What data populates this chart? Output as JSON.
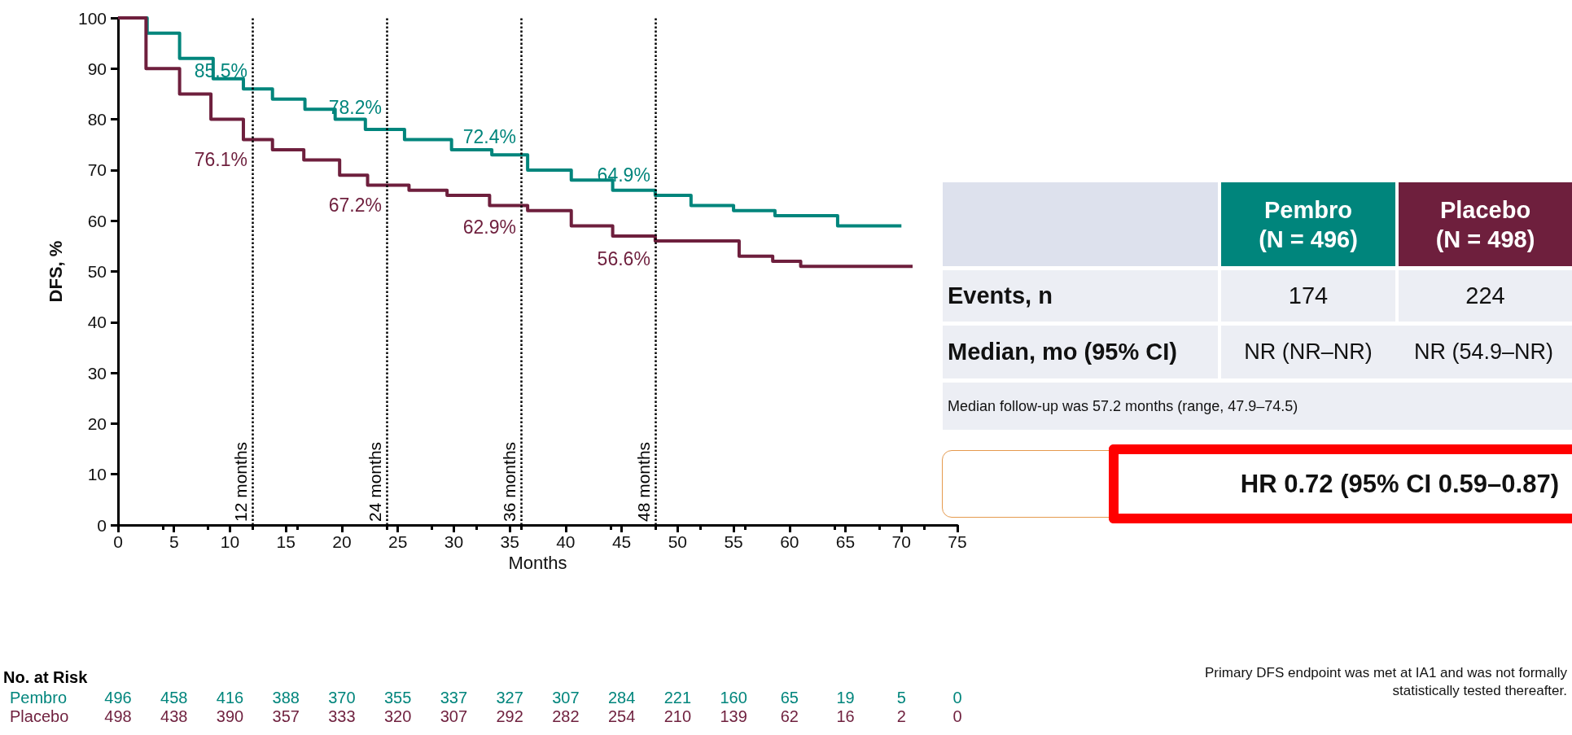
{
  "chart_data": {
    "type": "step",
    "xlabel": "Months",
    "ylabel": "DFS, %",
    "series": [
      {
        "name": "Pembro",
        "color": "#00857c",
        "x": [
          0,
          2.6,
          5.5,
          8.5,
          11.2,
          13.8,
          16.7,
          19.4,
          22.1,
          25.6,
          29.8,
          33.4,
          36.6,
          40.5,
          44.2,
          48.0,
          51.2,
          55.0,
          58.7,
          64.3,
          70.0
        ],
        "values": [
          100,
          97,
          92,
          88,
          86,
          84,
          82,
          80,
          78,
          76,
          74,
          73,
          70,
          68,
          66,
          65,
          63,
          62,
          61,
          59,
          59
        ]
      },
      {
        "name": "Placebo",
        "color": "#6e1f3d",
        "x": [
          0,
          2.5,
          5.5,
          8.3,
          11.2,
          13.8,
          16.6,
          19.8,
          22.3,
          26.0,
          29.4,
          33.2,
          36.6,
          40.5,
          44.2,
          48.0,
          55.5,
          58.5,
          61.0,
          71.0
        ],
        "values": [
          100,
          90,
          85,
          80,
          76,
          74,
          72,
          69,
          67,
          66,
          65,
          63,
          62,
          59,
          57,
          56,
          53,
          52,
          51,
          51
        ]
      }
    ],
    "xlim": [
      0,
      75
    ],
    "xticks": [
      0,
      5,
      10,
      15,
      20,
      25,
      30,
      35,
      40,
      45,
      50,
      55,
      60,
      65,
      70,
      75
    ],
    "ylim": [
      0,
      100
    ],
    "yticks": [
      0,
      10,
      20,
      30,
      40,
      50,
      60,
      70,
      80,
      90,
      100
    ],
    "grid": false,
    "legend": false,
    "marker": "none",
    "line_style": "solid",
    "ref_lines": [
      {
        "axis": "x",
        "value": 12,
        "label": "12 months",
        "color": "#000000",
        "line_style": "dotted"
      },
      {
        "axis": "x",
        "value": 24,
        "label": "24 months",
        "color": "#000000",
        "line_style": "dotted"
      },
      {
        "axis": "x",
        "value": 36,
        "label": "36 months",
        "color": "#000000",
        "line_style": "dotted"
      },
      {
        "axis": "x",
        "value": 48,
        "label": "48 months",
        "color": "#000000",
        "line_style": "dotted"
      }
    ],
    "annotations": [
      {
        "text": "85.5%",
        "x": 12,
        "y": 85.5
      },
      {
        "text": "78.2%",
        "x": 24,
        "y": 78.2
      },
      {
        "text": "72.4%",
        "x": 36,
        "y": 72.4
      },
      {
        "text": "64.9%",
        "x": 48,
        "y": 64.9
      },
      {
        "text": "76.1%",
        "x": 12,
        "y": 76.1
      },
      {
        "text": "67.2%",
        "x": 24,
        "y": 67.2
      },
      {
        "text": "62.9%",
        "x": 36,
        "y": 62.9
      },
      {
        "text": "56.6%",
        "x": 48,
        "y": 56.6
      },
      "No. at Risk",
      "496 458 416 388 370 355 337 327 307 284 221 160 65 19 5 0",
      "498 438 390 357 333 320 307 292 282 254 210 139 62 16 2 0",
      "(N = 496)",
      "(N = 498)",
      "Events, n",
      "174",
      "224",
      "Median, mo (95% CI)",
      "NR (NR–NR)",
      "NR (54.9–NR)",
      "Median follow-up was 57.2 months (range, 47.9–74.5)",
      "HR 0.72 (95% CI 0.59–0.87)",
      "Primary DFS endpoint was met at IA1 and was not formally statistically tested thereafter."
    ]
  }
}
